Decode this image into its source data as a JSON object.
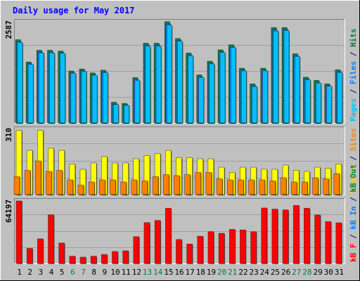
{
  "chart_data": {
    "type": "bar",
    "title": "Daily usage for May 2017",
    "categories": [
      "1",
      "2",
      "3",
      "4",
      "5",
      "6",
      "7",
      "8",
      "9",
      "10",
      "11",
      "12",
      "13",
      "14",
      "15",
      "16",
      "17",
      "18",
      "19",
      "20",
      "21",
      "22",
      "23",
      "24",
      "25",
      "26",
      "27",
      "28",
      "29",
      "30",
      "31"
    ],
    "weekend_days": [
      "6",
      "7",
      "13",
      "14",
      "20",
      "21",
      "27",
      "28"
    ],
    "panels": [
      {
        "id": "top",
        "max_label": "2587",
        "ymax": 2587,
        "right_labels": [
          "Pages",
          " / ",
          "Files",
          " / ",
          "Hits"
        ],
        "right_label_colors": [
          "#00c0ff",
          "#000080",
          "#0080ff",
          "#000080",
          "#008040"
        ],
        "series": [
          {
            "name": "Hits",
            "color": "#008040",
            "values": [
              2130,
              1560,
              1860,
              1860,
              1840,
              1330,
              1380,
              1280,
              1350,
              530,
              500,
              1160,
              2040,
              2040,
              2590,
              2160,
              1790,
              1230,
              1580,
              1870,
              2000,
              1400,
              1000,
              1400,
              2440,
              2440,
              1770,
              1170,
              1090,
              1000,
              1360
            ]
          },
          {
            "name": "Files",
            "color": "#0080ff",
            "values": [
              2080,
              1510,
              1810,
              1810,
              1790,
              1280,
              1330,
              1230,
              1300,
              480,
              460,
              1110,
              1990,
              1990,
              2530,
              2110,
              1740,
              1180,
              1530,
              1820,
              1950,
              1350,
              950,
              1350,
              2380,
              2390,
              1720,
              1120,
              1040,
              950,
              1310
            ]
          },
          {
            "name": "Pages",
            "color": "#00c0ff",
            "values": [
              2060,
              1500,
              1790,
              1790,
              1780,
              1270,
              1320,
              1220,
              1290,
              470,
              450,
              1090,
              1960,
              1960,
              2500,
              2090,
              1720,
              1160,
              1510,
              1800,
              1930,
              1330,
              930,
              1330,
              2350,
              2360,
              1700,
              1100,
              1020,
              940,
              1290
            ]
          }
        ]
      },
      {
        "id": "middle",
        "max_label": "310",
        "ymax": 310,
        "right_labels": [
          "Visits",
          " / ",
          "Sites"
        ],
        "right_label_colors": [
          "#e0e000",
          "#000080",
          "#ff8000"
        ],
        "series": [
          {
            "name": "Visits",
            "color": "#ffff00",
            "values": [
              305,
              210,
              305,
              220,
              210,
              145,
              120,
              150,
              180,
              150,
              150,
              170,
              185,
              195,
              210,
              175,
              175,
              170,
              170,
              130,
              105,
              130,
              130,
              120,
              120,
              140,
              115,
              110,
              130,
              125,
              145
            ]
          },
          {
            "name": "Sites",
            "color": "#ff8000",
            "values": [
              85,
              115,
              160,
              110,
              115,
              70,
              45,
              60,
              70,
              70,
              60,
              70,
              65,
              85,
              95,
              90,
              95,
              105,
              105,
              75,
              70,
              70,
              70,
              70,
              65,
              80,
              60,
              60,
              80,
              75,
              100
            ]
          }
        ]
      },
      {
        "id": "bottom",
        "max_label": "64197",
        "ymax": 64197,
        "right_labels": [
          "kB F",
          " / ",
          "kB In",
          " / ",
          "kB Out"
        ],
        "right_label_colors": [
          "#ff0000",
          "#000080",
          "#0080ff",
          "#000080",
          "#008040"
        ],
        "series": [
          {
            "name": "kB F",
            "color": "#ff0000",
            "values": [
              64197,
              15500,
              25300,
              50000,
              21000,
              7500,
              6500,
              7500,
              9300,
              12300,
              13000,
              27500,
              42000,
              44200,
              56700,
              24600,
              20000,
              28000,
              32600,
              31000,
              35000,
              34500,
              32600,
              57000,
              55800,
              55000,
              59600,
              56700,
              49900,
              43000,
              41800
            ]
          }
        ]
      }
    ]
  }
}
